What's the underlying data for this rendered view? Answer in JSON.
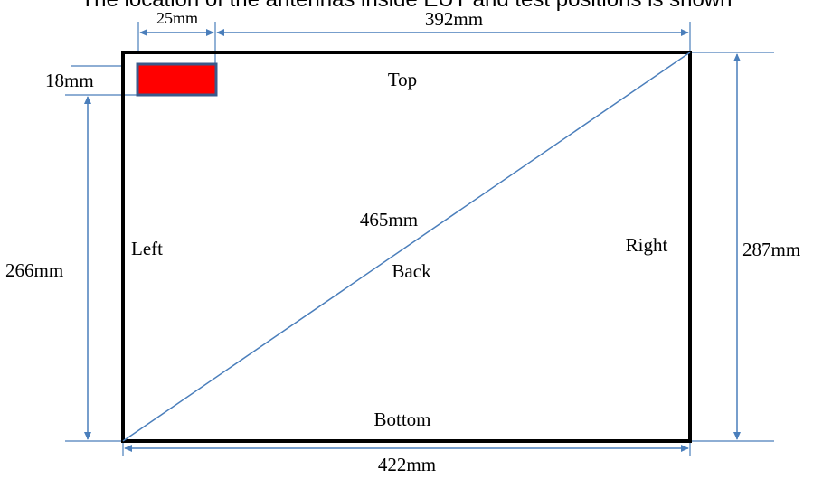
{
  "caption": "The location of the antennas inside EUT and test positions is shown",
  "faces": {
    "top": "Top",
    "bottom": "Bottom",
    "left": "Left",
    "right": "Right",
    "back": "Back"
  },
  "dimensions": {
    "antenna_offset_x": "25mm",
    "remaining_width": "392mm",
    "antenna_offset_y": "18mm",
    "remaining_height": "266mm",
    "total_height": "287mm",
    "total_width": "422mm",
    "diagonal": "465mm"
  },
  "colors": {
    "outline": "#000000",
    "dimension_line": "#4a7ebb",
    "antenna_fill": "#ff0000",
    "antenna_border": "#3a5a8c"
  }
}
